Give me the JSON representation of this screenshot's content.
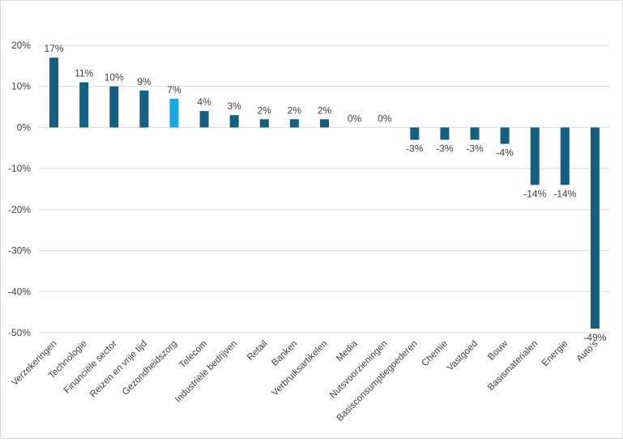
{
  "chart_data": {
    "type": "bar",
    "categories": [
      "Verzekeringen",
      "Technologie",
      "Financiële sector",
      "Reizen en vrije tijd",
      "Gezondheidszorg",
      "Telecom",
      "Industriële bedrijven",
      "Retail",
      "Banken",
      "Verbruiksartikelen",
      "Media",
      "Nutsvoorzieningen",
      "Basisconsumptiegoederen",
      "Chemie",
      "Vastgoed",
      "Bouw",
      "Basismaterialen",
      "Energie",
      "Auto’s"
    ],
    "values": [
      17,
      11,
      10,
      9,
      7,
      4,
      3,
      2,
      2,
      2,
      0,
      0,
      -3,
      -3,
      -3,
      -4,
      -14,
      -14,
      -49
    ],
    "data_labels": [
      "17%",
      "11%",
      "10%",
      "9%",
      "7%",
      "4%",
      "3%",
      "2%",
      "2%",
      "2%",
      "0%",
      "0%",
      "-3%",
      "-3%",
      "-3%",
      "-4%",
      "-14%",
      "-14%",
      "-49%"
    ],
    "y_ticks": [
      20,
      10,
      0,
      -10,
      -20,
      -30,
      -40,
      -50
    ],
    "y_tick_labels": [
      "20%",
      "10%",
      "0%",
      "-10%",
      "-20%",
      "-30%",
      "-40%",
      "-50%"
    ],
    "ylim": [
      -50,
      20
    ],
    "grid": true,
    "legend": "none",
    "colors": {
      "bar": "#156082",
      "highlight": "#1aa7e5",
      "grid": "#d9d9d9",
      "text": "#404040"
    },
    "highlight_index": 4
  }
}
